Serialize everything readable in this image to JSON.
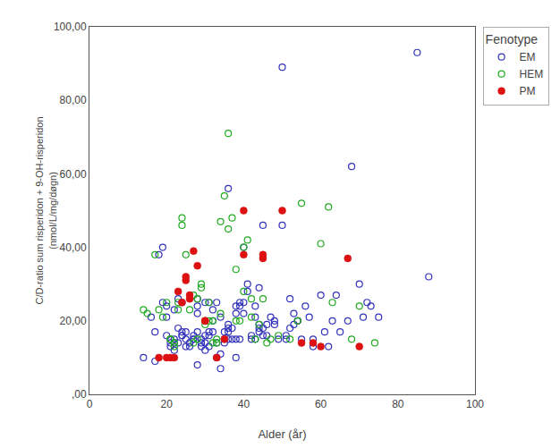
{
  "chart_data": {
    "type": "scatter",
    "xlabel": "Alder (år)",
    "ylabel": "C/D-ratio sum risperidon + 9-OH-risperidon\n(nmol/L/mg/døgn)",
    "legend_title": "Fenotype",
    "legend": "right",
    "grid": false,
    "xlim": [
      0,
      100
    ],
    "ylim": [
      0,
      100
    ],
    "xticks": [
      0,
      20,
      40,
      60,
      80,
      100
    ],
    "yticks": [
      {
        "value": 0,
        "label": ",00"
      },
      {
        "value": 20,
        "label": "20,00"
      },
      {
        "value": 40,
        "label": "40,00"
      },
      {
        "value": 60,
        "label": "60,00"
      },
      {
        "value": 80,
        "label": "80,00"
      },
      {
        "value": 100,
        "label": "100,00"
      }
    ],
    "series": [
      {
        "name": "EM",
        "color": "#3333bb",
        "marker": "circle-open",
        "x": [
          14,
          16,
          17,
          17,
          18,
          19,
          19,
          20,
          20,
          20,
          21,
          21,
          21,
          22,
          22,
          22,
          22,
          23,
          23,
          23,
          24,
          24,
          24,
          24,
          25,
          25,
          25,
          26,
          26,
          27,
          27,
          27,
          28,
          28,
          28,
          28,
          28,
          29,
          29,
          29,
          30,
          30,
          30,
          30,
          31,
          31,
          31,
          31,
          32,
          32,
          32,
          33,
          33,
          33,
          34,
          34,
          34,
          35,
          35,
          35,
          36,
          36,
          36,
          36,
          36,
          37,
          37,
          38,
          38,
          38,
          38,
          39,
          39,
          39,
          40,
          40,
          40,
          41,
          41,
          42,
          42,
          43,
          43,
          43,
          44,
          44,
          44,
          44,
          45,
          45,
          45,
          46,
          46,
          47,
          48,
          48,
          49,
          50,
          50,
          51,
          51,
          52,
          52,
          53,
          53,
          54,
          54,
          55,
          56,
          57,
          58,
          58,
          60,
          61,
          62,
          63,
          64,
          65,
          67,
          68,
          70,
          71,
          72,
          73,
          75,
          85,
          88
        ],
        "values": [
          10,
          21,
          9,
          17,
          38,
          40,
          25,
          21,
          24,
          16,
          15,
          14,
          13,
          23,
          15,
          14,
          12,
          18,
          26,
          14,
          17,
          16,
          25,
          16,
          15,
          13,
          17,
          13,
          14,
          15,
          15,
          16,
          17,
          24,
          22,
          26,
          8,
          15,
          14,
          13,
          25,
          14,
          12,
          16,
          17,
          13,
          25,
          16,
          23,
          17,
          20,
          25,
          14,
          10,
          21,
          7,
          11,
          17,
          14,
          15,
          18,
          17,
          15,
          19,
          56,
          18,
          15,
          10,
          24,
          15,
          22,
          24,
          25,
          15,
          40,
          22,
          25,
          30,
          28,
          16,
          15,
          21,
          15,
          24,
          18,
          29,
          19,
          17,
          46,
          18,
          16,
          19,
          16,
          21,
          19,
          20,
          15,
          89,
          46,
          15,
          16,
          26,
          18,
          22,
          19,
          20,
          20,
          15,
          24,
          21,
          15,
          13,
          27,
          17,
          13,
          20,
          27,
          17,
          20,
          62,
          30,
          21,
          25,
          24,
          21,
          93,
          32
        ]
      },
      {
        "name": "HEM",
        "color": "#22aa22",
        "marker": "circle-open",
        "x": [
          14,
          15,
          17,
          18,
          19,
          20,
          21,
          21,
          22,
          22,
          23,
          23,
          24,
          24,
          25,
          26,
          27,
          27,
          28,
          28,
          29,
          29,
          30,
          30,
          31,
          31,
          32,
          32,
          33,
          33,
          34,
          34,
          35,
          36,
          36,
          37,
          38,
          38,
          39,
          40,
          40,
          41,
          42,
          42,
          43,
          44,
          45,
          46,
          47,
          49,
          52,
          54,
          55,
          60,
          62,
          63,
          68,
          70,
          74
        ],
        "values": [
          23,
          22,
          38,
          23,
          21,
          25,
          15,
          15,
          14,
          13,
          25,
          23,
          48,
          46,
          38,
          23,
          27,
          14,
          26,
          15,
          30,
          29,
          20,
          19,
          25,
          20,
          14,
          20,
          15,
          14,
          22,
          47,
          54,
          71,
          45,
          48,
          20,
          34,
          20,
          40,
          28,
          42,
          26,
          21,
          15,
          19,
          26,
          14,
          15,
          16,
          15,
          20,
          52,
          41,
          51,
          25,
          15,
          24,
          14
        ]
      },
      {
        "name": "PM",
        "color": "#dd1111",
        "marker": "circle",
        "x": [
          18,
          20,
          21,
          22,
          23,
          24,
          25,
          25,
          26,
          26,
          27,
          28,
          30,
          30,
          33,
          35,
          40,
          40,
          45,
          45,
          50,
          55,
          58,
          60,
          67,
          70
        ],
        "values": [
          10,
          10,
          10,
          10,
          28,
          25,
          31,
          32,
          26,
          27,
          39,
          35,
          20,
          20,
          10,
          15,
          38,
          50,
          37,
          38,
          50,
          14,
          14,
          13,
          37,
          13
        ]
      }
    ]
  }
}
